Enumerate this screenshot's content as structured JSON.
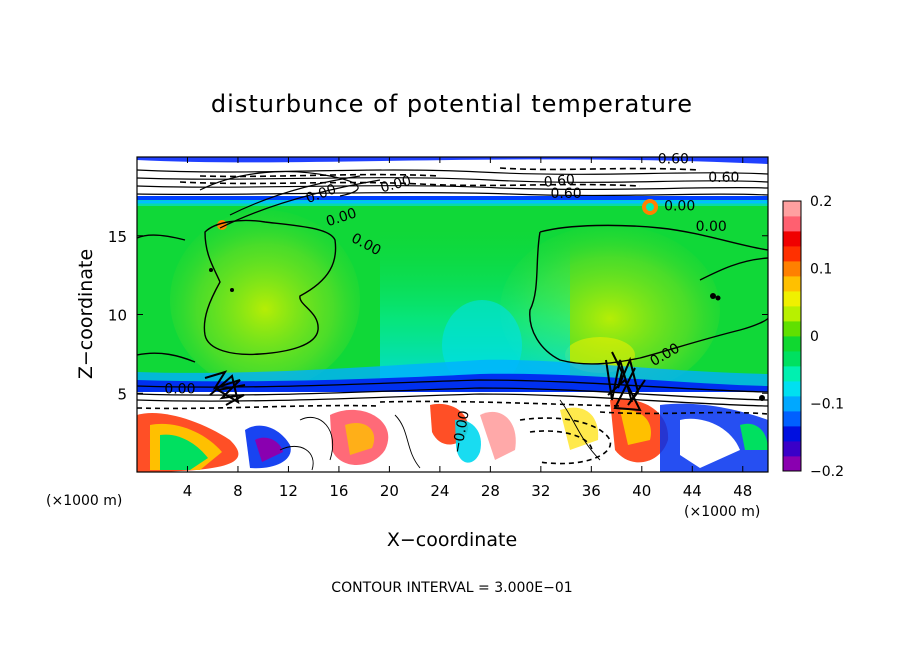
{
  "chart_data": {
    "type": "heatmap",
    "title": "disturbunce of potential temperature",
    "xlabel": "X−coordinate",
    "ylabel": "Z−coordinate",
    "x_unit": "(×1000 m)",
    "y_unit": "(×1000 m)",
    "xlim": [
      0,
      50
    ],
    "ylim": [
      0,
      20
    ],
    "x_ticks": [
      4,
      8,
      12,
      16,
      20,
      24,
      28,
      32,
      36,
      40,
      44,
      48
    ],
    "y_ticks": [
      5,
      10,
      15
    ],
    "x_tick_labels": [
      "4",
      "8",
      "12",
      "16",
      "20",
      "24",
      "28",
      "32",
      "36",
      "40",
      "44",
      "48"
    ],
    "y_tick_labels": [
      "5",
      "10",
      "15"
    ],
    "colorbar": {
      "min": -0.2,
      "max": 0.2,
      "ticks": [
        0.2,
        0.1,
        0,
        -0.1,
        -0.2
      ],
      "tick_labels": [
        "0.2",
        "0.1",
        "0",
        "−0.1",
        "−0.2"
      ],
      "colors": [
        "#8a00b0",
        "#3a00c8",
        "#0010e0",
        "#0060ff",
        "#00a8ff",
        "#00e0f0",
        "#00f0b0",
        "#00e060",
        "#10d830",
        "#60e000",
        "#b8f000",
        "#f0f000",
        "#ffc000",
        "#ff8000",
        "#ff3000",
        "#f00000",
        "#ff6070",
        "#ffa0a0"
      ]
    },
    "contour_labels": [
      "0.00",
      "0.00",
      "0.00",
      "0.00",
      "0.00",
      "0.60",
      "0.60",
      "0.60",
      "0.60",
      "0.00",
      "0.00",
      "−0.00",
      "0.00"
    ],
    "contour_interval_text": "CONTOUR INTERVAL = 3.000E−01",
    "regions": {
      "background_value": 0.0,
      "warm_columns": [
        {
          "x_range": [
            5.5,
            16
          ],
          "z_range": [
            8,
            17
          ],
          "value": 0.05
        },
        {
          "x_range": [
            31,
            49.5
          ],
          "z_range": [
            7,
            16
          ],
          "value": 0.06
        }
      ],
      "cool_column": {
        "x_range": [
          24,
          31
        ],
        "z_range": [
          6,
          12
        ],
        "value": -0.07
      },
      "tropopause_band_z": 17.2,
      "low_level_band_z": 5.2
    }
  }
}
